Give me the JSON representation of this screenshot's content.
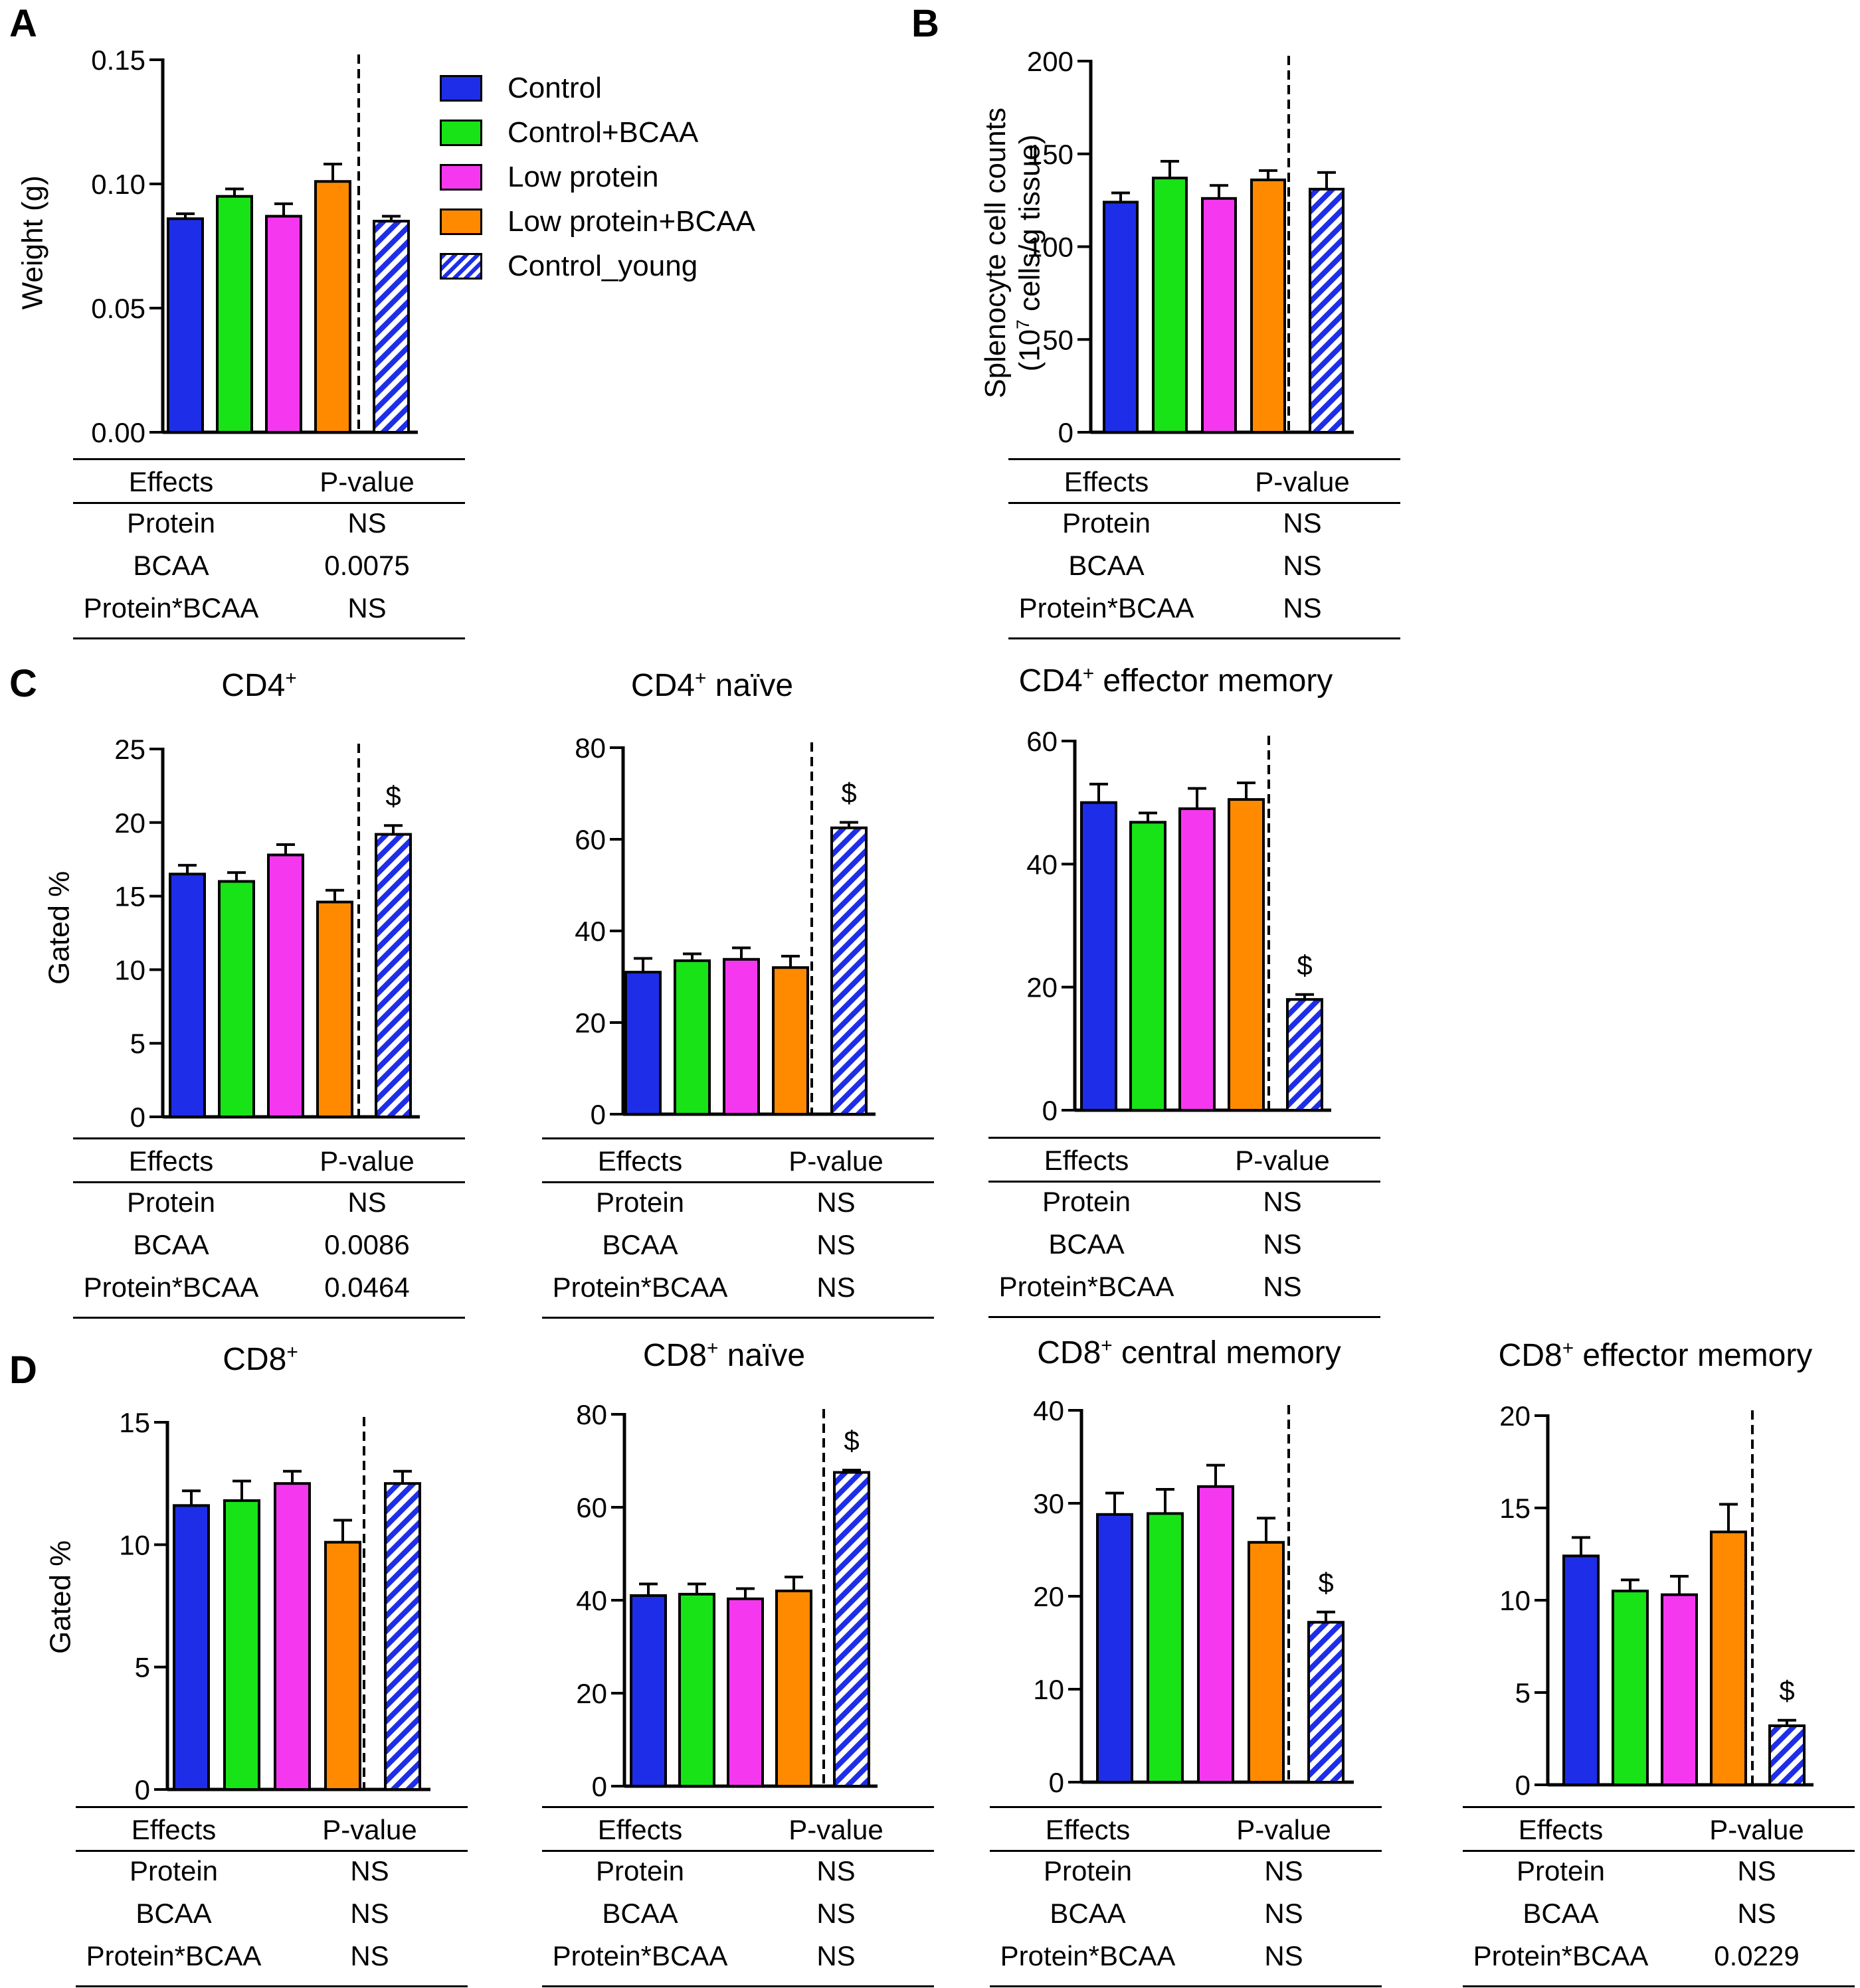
{
  "colors": {
    "control": "#1e2ee8",
    "control_bcaa": "#17e317",
    "low_protein": "#f538f0",
    "low_protein_bcaa": "#ff8a00",
    "control_young": "#1e2ee8"
  },
  "legend": [
    {
      "label": "Control",
      "key": "control"
    },
    {
      "label": "Control+BCAA",
      "key": "control_bcaa"
    },
    {
      "label": "Low protein",
      "key": "low_protein"
    },
    {
      "label": "Low protein+BCAA",
      "key": "low_protein_bcaa"
    },
    {
      "label": "Control_young",
      "key": "control_young",
      "hatched": true
    }
  ],
  "panels": {
    "A": "A",
    "B": "B",
    "C": "C",
    "D": "D"
  },
  "stats_header": {
    "effects": "Effects",
    "pvalue": "P-value"
  },
  "chart_data": [
    {
      "id": "A",
      "type": "bar",
      "title": "",
      "ylabel": "Weight (g)",
      "ylim": [
        0,
        0.15
      ],
      "yticks": [
        "0.00",
        "0.05",
        "0.10",
        "0.15"
      ],
      "ytick_values": [
        0,
        0.05,
        0.1,
        0.15
      ],
      "categories": [
        "Control",
        "Control+BCAA",
        "Low protein",
        "Low protein+BCAA",
        "Control_young"
      ],
      "values": [
        0.086,
        0.095,
        0.087,
        0.101,
        0.085
      ],
      "errors": [
        0.002,
        0.003,
        0.005,
        0.007,
        0.002
      ],
      "annotations": [
        "",
        "",
        "",
        "",
        ""
      ],
      "stats": [
        {
          "effect": "Protein",
          "p": "NS"
        },
        {
          "effect": "BCAA",
          "p": "0.0075"
        },
        {
          "effect": "Protein*BCAA",
          "p": "NS"
        }
      ]
    },
    {
      "id": "B",
      "type": "bar",
      "title": "",
      "ylabel_line1": "Splenocyte cell counts",
      "ylabel_line2_pre": "(10",
      "ylabel_line2_sup": "7",
      "ylabel_line2_post": " cells/g tissue)",
      "ylim": [
        0,
        200
      ],
      "yticks": [
        "0",
        "50",
        "100",
        "150",
        "200"
      ],
      "ytick_values": [
        0,
        50,
        100,
        150,
        200
      ],
      "categories": [
        "Control",
        "Control+BCAA",
        "Low protein",
        "Low protein+BCAA",
        "Control_young"
      ],
      "values": [
        124,
        137,
        126,
        136,
        131
      ],
      "errors": [
        5,
        9,
        7,
        5,
        9
      ],
      "annotations": [
        "",
        "",
        "",
        "",
        ""
      ],
      "stats": [
        {
          "effect": "Protein",
          "p": "NS"
        },
        {
          "effect": "BCAA",
          "p": "NS"
        },
        {
          "effect": "Protein*BCAA",
          "p": "NS"
        }
      ]
    },
    {
      "id": "C1",
      "type": "bar",
      "title_pre": "CD4",
      "title_sup": "+",
      "title_post": "",
      "ylabel": "Gated %",
      "ylim": [
        0,
        25
      ],
      "yticks": [
        "0",
        "5",
        "10",
        "15",
        "20",
        "25"
      ],
      "ytick_values": [
        0,
        5,
        10,
        15,
        20,
        25
      ],
      "categories": [
        "Control",
        "Control+BCAA",
        "Low protein",
        "Low protein+BCAA",
        "Control_young"
      ],
      "values": [
        16.5,
        16.0,
        17.8,
        14.6,
        19.2
      ],
      "errors": [
        0.6,
        0.6,
        0.7,
        0.8,
        0.6
      ],
      "annotations": [
        "",
        "",
        "",
        "",
        "$"
      ],
      "stats": [
        {
          "effect": "Protein",
          "p": "NS"
        },
        {
          "effect": "BCAA",
          "p": "0.0086"
        },
        {
          "effect": "Protein*BCAA",
          "p": "0.0464"
        }
      ]
    },
    {
      "id": "C2",
      "type": "bar",
      "title_pre": "CD4",
      "title_sup": "+",
      "title_post": " naïve",
      "ylim": [
        0,
        80
      ],
      "yticks": [
        "0",
        "20",
        "40",
        "60",
        "80"
      ],
      "ytick_values": [
        0,
        20,
        40,
        60,
        80
      ],
      "categories": [
        "Control",
        "Control+BCAA",
        "Low protein",
        "Low protein+BCAA",
        "Control_young"
      ],
      "values": [
        31,
        33.5,
        33.8,
        32,
        62.5
      ],
      "errors": [
        3,
        1.5,
        2.5,
        2.5,
        1.2
      ],
      "annotations": [
        "",
        "",
        "",
        "",
        "$"
      ],
      "stats": [
        {
          "effect": "Protein",
          "p": "NS"
        },
        {
          "effect": "BCAA",
          "p": "NS"
        },
        {
          "effect": "Protein*BCAA",
          "p": "NS"
        }
      ]
    },
    {
      "id": "C3",
      "type": "bar",
      "title_pre": "CD4",
      "title_sup": "+",
      "title_post": " effector memory",
      "ylim": [
        0,
        60
      ],
      "yticks": [
        "0",
        "20",
        "40",
        "60"
      ],
      "ytick_values": [
        0,
        20,
        40,
        60
      ],
      "categories": [
        "Control",
        "Control+BCAA",
        "Low protein",
        "Low protein+BCAA",
        "Control_young"
      ],
      "values": [
        50,
        46.8,
        49,
        50.5,
        18
      ],
      "errors": [
        3,
        1.5,
        3.3,
        2.7,
        0.8
      ],
      "annotations": [
        "",
        "",
        "",
        "",
        "$"
      ],
      "stats": [
        {
          "effect": "Protein",
          "p": "NS"
        },
        {
          "effect": "BCAA",
          "p": "NS"
        },
        {
          "effect": "Protein*BCAA",
          "p": "NS"
        }
      ]
    },
    {
      "id": "D1",
      "type": "bar",
      "title_pre": "CD8",
      "title_sup": "+",
      "title_post": "",
      "ylabel": "Gated %",
      "ylim": [
        0,
        15
      ],
      "yticks": [
        "0",
        "5",
        "10",
        "15"
      ],
      "ytick_values": [
        0,
        5,
        10,
        15
      ],
      "categories": [
        "Control",
        "Control+BCAA",
        "Low protein",
        "Low protein+BCAA",
        "Control_young"
      ],
      "values": [
        11.6,
        11.8,
        12.5,
        10.1,
        12.5
      ],
      "errors": [
        0.6,
        0.8,
        0.5,
        0.9,
        0.5
      ],
      "annotations": [
        "",
        "",
        "",
        "",
        ""
      ],
      "stats": [
        {
          "effect": "Protein",
          "p": "NS"
        },
        {
          "effect": "BCAA",
          "p": "NS"
        },
        {
          "effect": "Protein*BCAA",
          "p": "NS"
        }
      ]
    },
    {
      "id": "D2",
      "type": "bar",
      "title_pre": "CD8",
      "title_sup": "+",
      "title_post": " naïve",
      "ylim": [
        0,
        80
      ],
      "yticks": [
        "0",
        "20",
        "40",
        "60",
        "80"
      ],
      "ytick_values": [
        0,
        20,
        40,
        60,
        80
      ],
      "categories": [
        "Control",
        "Control+BCAA",
        "Low protein",
        "Low protein+BCAA",
        "Control_young"
      ],
      "values": [
        41,
        41.3,
        40.3,
        42,
        67.5
      ],
      "errors": [
        2.5,
        2.2,
        2.2,
        3,
        0.5
      ],
      "annotations": [
        "",
        "",
        "",
        "",
        "$"
      ],
      "stats": [
        {
          "effect": "Protein",
          "p": "NS"
        },
        {
          "effect": "BCAA",
          "p": "NS"
        },
        {
          "effect": "Protein*BCAA",
          "p": "NS"
        }
      ]
    },
    {
      "id": "D3",
      "type": "bar",
      "title_pre": "CD8",
      "title_sup": "+",
      "title_post": " central memory",
      "ylim": [
        0,
        40
      ],
      "yticks": [
        "0",
        "10",
        "20",
        "30",
        "40"
      ],
      "ytick_values": [
        0,
        10,
        20,
        30,
        40
      ],
      "categories": [
        "Control",
        "Control+BCAA",
        "Low protein",
        "Low protein+BCAA",
        "Control_young"
      ],
      "values": [
        28.8,
        28.9,
        31.8,
        25.8,
        17.2
      ],
      "errors": [
        2.3,
        2.6,
        2.3,
        2.6,
        1.1
      ],
      "annotations": [
        "",
        "",
        "",
        "",
        "$"
      ],
      "stats": [
        {
          "effect": "Protein",
          "p": "NS"
        },
        {
          "effect": "BCAA",
          "p": "NS"
        },
        {
          "effect": "Protein*BCAA",
          "p": "NS"
        }
      ]
    },
    {
      "id": "D4",
      "type": "bar",
      "title_pre": "CD8",
      "title_sup": "+",
      "title_post": " effector memory",
      "ylim": [
        0,
        20
      ],
      "yticks": [
        "0",
        "5",
        "10",
        "15",
        "20"
      ],
      "ytick_values": [
        0,
        5,
        10,
        15,
        20
      ],
      "categories": [
        "Control",
        "Control+BCAA",
        "Low protein",
        "Low protein+BCAA",
        "Control_young"
      ],
      "values": [
        12.4,
        10.5,
        10.3,
        13.7,
        3.2
      ],
      "errors": [
        1.0,
        0.6,
        1.0,
        1.5,
        0.3
      ],
      "annotations": [
        "",
        "",
        "",
        "",
        "$"
      ],
      "stats": [
        {
          "effect": "Protein",
          "p": "NS"
        },
        {
          "effect": "BCAA",
          "p": "NS"
        },
        {
          "effect": "Protein*BCAA",
          "p": "0.0229"
        }
      ]
    }
  ]
}
